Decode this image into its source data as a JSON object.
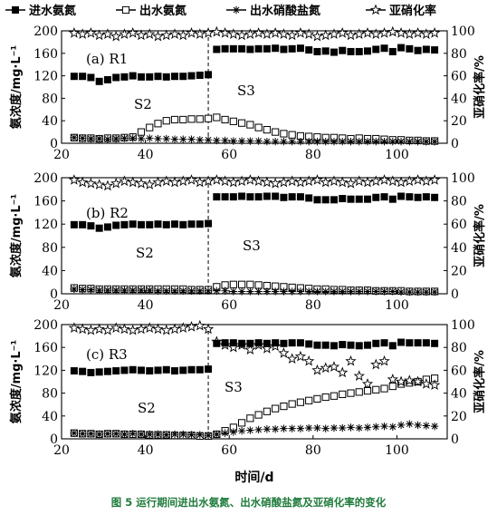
{
  "legend": [
    {
      "label": "进水氨氮",
      "series": "influent"
    },
    {
      "label": "出水氨氮",
      "series": "effluent_nh4"
    },
    {
      "label": "出水硝酸盐氮",
      "series": "effluent_no3"
    },
    {
      "label": "亚硝化率",
      "series": "ratio"
    }
  ],
  "caption": {
    "figure_no": "图 5",
    "text": "运行期间进出水氨氮、出水硝酸盐氮及亚硝化率的变化"
  },
  "chart_data": [
    {
      "type": "scatter",
      "panel_label": "(a) R1",
      "phase_labels": [
        "S2",
        "S3"
      ],
      "phase_divider_x": 55,
      "xlabel": "时间/d",
      "ylabel_left": "氨浓度/mg·L⁻¹",
      "ylabel_right": "亚硝化率/%",
      "xlim": [
        20,
        112
      ],
      "ylim_left": [
        0,
        200
      ],
      "ylim_right": [
        0,
        100
      ],
      "x_ticks": [
        20,
        40,
        60,
        80,
        100
      ],
      "y_ticks_left": [
        0,
        40,
        80,
        120,
        160,
        200
      ],
      "y_ticks_right": [
        0,
        20,
        40,
        60,
        80,
        100
      ],
      "x": [
        23,
        25,
        27,
        29,
        31,
        33,
        35,
        37,
        39,
        41,
        43,
        45,
        47,
        49,
        51,
        53,
        55,
        57,
        59,
        61,
        63,
        65,
        67,
        69,
        71,
        73,
        75,
        77,
        79,
        81,
        83,
        85,
        87,
        89,
        91,
        93,
        95,
        97,
        99,
        101,
        103,
        105,
        107,
        109
      ],
      "series": [
        {
          "name": "进水氨氮",
          "axis": "left",
          "marker": "filled-square",
          "values": [
            119,
            119,
            117,
            110,
            113,
            117,
            118,
            120,
            118,
            118,
            119,
            118,
            119,
            119,
            120,
            121,
            122,
            167,
            168,
            168,
            168,
            167,
            168,
            168,
            169,
            167,
            168,
            169,
            166,
            163,
            164,
            162,
            165,
            163,
            163,
            164,
            167,
            169,
            163,
            170,
            168,
            165,
            167,
            166
          ]
        },
        {
          "name": "出水氨氮",
          "axis": "left",
          "marker": "open-square",
          "values": [
            10,
            9,
            9,
            8,
            9,
            9,
            10,
            11,
            20,
            28,
            35,
            40,
            42,
            42,
            43,
            43,
            44,
            46,
            42,
            39,
            36,
            33,
            28,
            24,
            20,
            17,
            15,
            13,
            12,
            11,
            10,
            10,
            9,
            8,
            9,
            8,
            8,
            7,
            6,
            6,
            5,
            5,
            4,
            4
          ]
        },
        {
          "name": "出水硝酸盐氮",
          "axis": "left",
          "marker": "asterisk",
          "values": [
            10,
            9,
            8,
            8,
            7,
            8,
            9,
            9,
            8,
            9,
            8,
            8,
            7,
            7,
            7,
            6,
            6,
            5,
            5,
            4,
            4,
            4,
            4,
            3,
            3,
            3,
            3,
            3,
            3,
            3,
            3,
            3,
            3,
            3,
            3,
            3,
            3,
            3,
            3,
            3,
            3,
            3,
            3,
            3
          ]
        },
        {
          "name": "亚硝化率",
          "axis": "right",
          "marker": "open-star",
          "values": [
            98,
            97,
            98,
            96,
            97,
            95,
            97,
            98,
            96,
            97,
            95,
            96,
            97,
            96,
            98,
            97,
            98,
            99,
            98,
            97,
            96,
            97,
            98,
            97,
            98,
            97,
            96,
            98,
            97,
            95,
            96,
            97,
            98,
            96,
            97,
            98,
            97,
            98,
            99,
            98,
            97,
            98,
            97,
            98
          ]
        }
      ]
    },
    {
      "type": "scatter",
      "panel_label": "(b) R2",
      "phase_labels": [
        "S2",
        "S3"
      ],
      "phase_divider_x": 55,
      "xlabel": "时间/d",
      "ylabel_left": "氨浓度/mg·L⁻¹",
      "ylabel_right": "亚硝化率/%",
      "xlim": [
        20,
        112
      ],
      "ylim_left": [
        0,
        200
      ],
      "ylim_right": [
        0,
        100
      ],
      "x_ticks": [
        20,
        40,
        60,
        80,
        100
      ],
      "y_ticks_left": [
        0,
        40,
        80,
        120,
        160,
        200
      ],
      "y_ticks_right": [
        0,
        20,
        40,
        60,
        80,
        100
      ],
      "x": [
        23,
        25,
        27,
        29,
        31,
        33,
        35,
        37,
        39,
        41,
        43,
        45,
        47,
        49,
        51,
        53,
        55,
        57,
        59,
        61,
        63,
        65,
        67,
        69,
        71,
        73,
        75,
        77,
        79,
        81,
        83,
        85,
        87,
        89,
        91,
        93,
        95,
        97,
        99,
        101,
        103,
        105,
        107,
        109
      ],
      "series": [
        {
          "name": "进水氨氮",
          "axis": "left",
          "marker": "filled-square",
          "values": [
            119,
            119,
            117,
            113,
            115,
            118,
            119,
            120,
            119,
            119,
            120,
            119,
            120,
            119,
            120,
            120,
            121,
            167,
            167,
            167,
            168,
            167,
            167,
            168,
            168,
            166,
            167,
            167,
            165,
            162,
            162,
            162,
            164,
            163,
            163,
            163,
            166,
            167,
            163,
            168,
            167,
            166,
            167,
            166
          ]
        },
        {
          "name": "出水氨氮",
          "axis": "left",
          "marker": "open-square",
          "values": [
            10,
            9,
            9,
            8,
            8,
            8,
            8,
            8,
            8,
            8,
            8,
            8,
            8,
            8,
            7,
            7,
            7,
            12,
            15,
            16,
            16,
            16,
            15,
            14,
            13,
            12,
            11,
            10,
            9,
            8,
            8,
            7,
            7,
            6,
            6,
            6,
            5,
            5,
            5,
            5,
            4,
            4,
            4,
            4
          ]
        },
        {
          "name": "出水硝酸盐氮",
          "axis": "left",
          "marker": "asterisk",
          "values": [
            8,
            7,
            7,
            6,
            6,
            6,
            6,
            6,
            6,
            6,
            5,
            5,
            5,
            5,
            5,
            5,
            5,
            5,
            5,
            4,
            4,
            4,
            4,
            4,
            4,
            4,
            4,
            4,
            4,
            4,
            4,
            4,
            4,
            4,
            4,
            4,
            4,
            4,
            4,
            3,
            3,
            3,
            3,
            3
          ]
        },
        {
          "name": "亚硝化率",
          "axis": "right",
          "marker": "open-star",
          "values": [
            98,
            96,
            95,
            94,
            93,
            95,
            97,
            96,
            95,
            94,
            96,
            97,
            96,
            97,
            98,
            96,
            97,
            98,
            97,
            96,
            97,
            98,
            97,
            96,
            95,
            96,
            97,
            96,
            97,
            98,
            96,
            97,
            96,
            95,
            97,
            96,
            97,
            98,
            97,
            96,
            97,
            98,
            97,
            98
          ]
        }
      ]
    },
    {
      "type": "scatter",
      "panel_label": "(c) R3",
      "phase_labels": [
        "S2",
        "S3"
      ],
      "phase_divider_x": 55,
      "xlabel": "时间/d",
      "ylabel_left": "氨浓度/mg·L⁻¹",
      "ylabel_right": "亚硝化率/%",
      "xlim": [
        20,
        112
      ],
      "ylim_left": [
        0,
        200
      ],
      "ylim_right": [
        0,
        100
      ],
      "x_ticks": [
        20,
        40,
        60,
        80,
        100
      ],
      "y_ticks_left": [
        0,
        40,
        80,
        120,
        160,
        200
      ],
      "y_ticks_right": [
        0,
        20,
        40,
        60,
        80,
        100
      ],
      "x": [
        23,
        25,
        27,
        29,
        31,
        33,
        35,
        37,
        39,
        41,
        43,
        45,
        47,
        49,
        51,
        53,
        55,
        57,
        59,
        61,
        63,
        65,
        67,
        69,
        71,
        73,
        75,
        77,
        79,
        81,
        83,
        85,
        87,
        89,
        91,
        93,
        95,
        97,
        99,
        101,
        103,
        105,
        107,
        109
      ],
      "series": [
        {
          "name": "进水氨氮",
          "axis": "left",
          "marker": "filled-square",
          "values": [
            119,
            118,
            116,
            117,
            118,
            119,
            120,
            121,
            120,
            119,
            120,
            121,
            119,
            120,
            121,
            121,
            122,
            167,
            168,
            168,
            167,
            167,
            168,
            167,
            168,
            167,
            168,
            168,
            166,
            164,
            164,
            163,
            165,
            164,
            163,
            164,
            167,
            168,
            163,
            169,
            168,
            168,
            168,
            167
          ]
        },
        {
          "name": "出水氨氮",
          "axis": "left",
          "marker": "open-square",
          "values": [
            10,
            9,
            9,
            8,
            9,
            9,
            8,
            8,
            8,
            7,
            7,
            7,
            6,
            6,
            6,
            5,
            5,
            8,
            14,
            20,
            28,
            36,
            42,
            48,
            53,
            57,
            61,
            64,
            67,
            70,
            73,
            75,
            78,
            80,
            82,
            84,
            86,
            88,
            92,
            96,
            98,
            100,
            104,
            106
          ]
        },
        {
          "name": "出水硝酸盐氮",
          "axis": "left",
          "marker": "asterisk",
          "values": [
            10,
            9,
            9,
            8,
            9,
            9,
            8,
            9,
            8,
            8,
            8,
            7,
            8,
            8,
            7,
            7,
            6,
            8,
            10,
            12,
            14,
            15,
            16,
            17,
            17,
            18,
            18,
            18,
            19,
            19,
            18,
            19,
            19,
            20,
            19,
            20,
            21,
            22,
            21,
            24,
            26,
            24,
            23,
            22
          ]
        },
        {
          "name": "亚硝化率",
          "axis": "right",
          "marker": "open-star",
          "values": [
            97,
            96,
            95,
            96,
            95,
            97,
            96,
            95,
            96,
            97,
            96,
            95,
            96,
            97,
            98,
            99,
            96,
            85,
            82,
            80,
            82,
            78,
            82,
            79,
            81,
            75,
            70,
            72,
            68,
            60,
            62,
            63,
            58,
            68,
            55,
            48,
            65,
            68,
            52,
            50,
            51,
            50,
            48,
            47
          ]
        }
      ]
    }
  ]
}
